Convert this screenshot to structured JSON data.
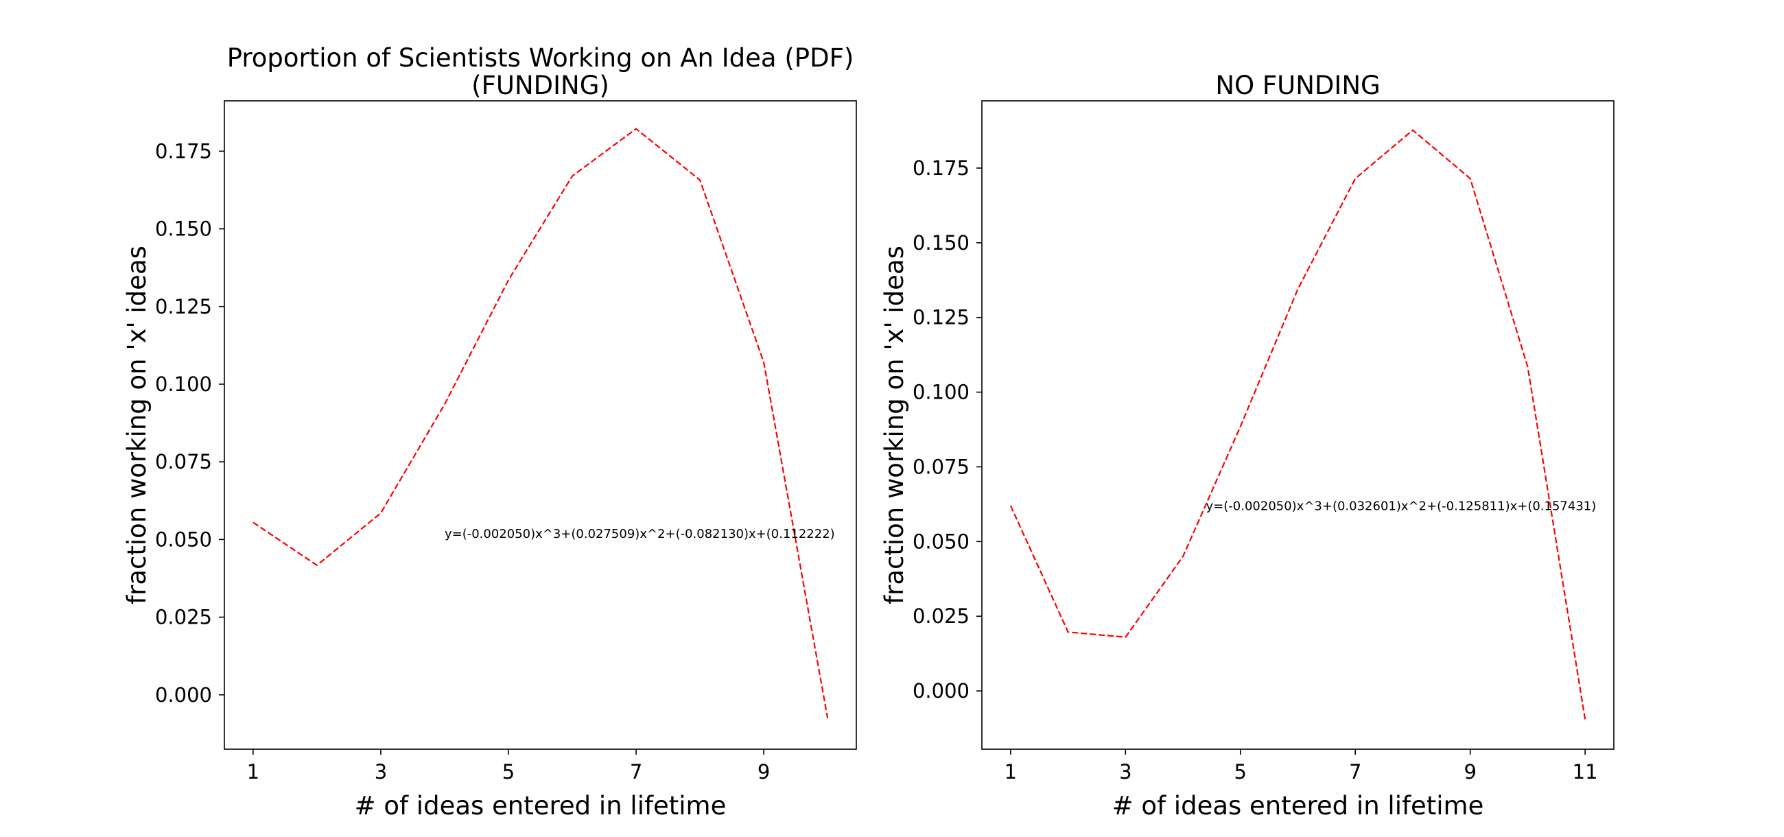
{
  "chart_data": [
    {
      "type": "line",
      "title_lines": [
        "Proportion of Scientists Working on An Idea (PDF)",
        "(FUNDING)"
      ],
      "xlabel": "# of ideas entered in lifetime",
      "ylabel": "fraction working on 'x' ideas",
      "xlim": [
        0.55,
        10.45
      ],
      "ylim": [
        -0.0175,
        0.1912
      ],
      "x_ticks": [
        1,
        3,
        5,
        7,
        9
      ],
      "y_ticks": [
        0.0,
        0.025,
        0.05,
        0.075,
        0.1,
        0.125,
        0.15,
        0.175
      ],
      "y_tick_decimals": 3,
      "grid": false,
      "legend": "none",
      "series": [
        {
          "x": [
            1,
            2,
            3,
            4,
            5,
            6,
            7,
            8,
            9,
            10
          ],
          "y": [
            0.0555,
            0.0417,
            0.0585,
            0.0935,
            0.1335,
            0.167,
            0.1822,
            0.1657,
            0.107,
            -0.0075
          ],
          "color": "#ff0000",
          "style": "dashed"
        }
      ],
      "annotation": {
        "text": "y=(-0.002050)x^3+(0.027509)x^2+(-0.082130)x+(0.112222)",
        "x": 4.0,
        "y": 0.0505
      }
    },
    {
      "type": "line",
      "title_lines": [
        "NO FUNDING"
      ],
      "xlabel": "# of ideas entered in lifetime",
      "ylabel": "fraction working on 'x' ideas",
      "xlim": [
        0.5,
        11.5
      ],
      "ylim": [
        -0.0195,
        0.1975
      ],
      "x_ticks": [
        1,
        3,
        5,
        7,
        9,
        11
      ],
      "y_ticks": [
        0.0,
        0.025,
        0.05,
        0.075,
        0.1,
        0.125,
        0.15,
        0.175
      ],
      "y_tick_decimals": 3,
      "grid": false,
      "legend": "none",
      "series": [
        {
          "x": [
            1,
            2,
            3,
            4,
            5,
            6,
            7,
            8,
            9,
            10,
            11
          ],
          "y": [
            0.062,
            0.0197,
            0.018,
            0.045,
            0.0885,
            0.1345,
            0.1715,
            0.1877,
            0.1715,
            0.1085,
            -0.0095
          ],
          "color": "#ff0000",
          "style": "dashed"
        }
      ],
      "annotation": {
        "text": "y=(-0.002050)x^3+(0.032601)x^2+(-0.125811)x+(0.157431)",
        "x": 4.4,
        "y": 0.0605
      }
    }
  ]
}
